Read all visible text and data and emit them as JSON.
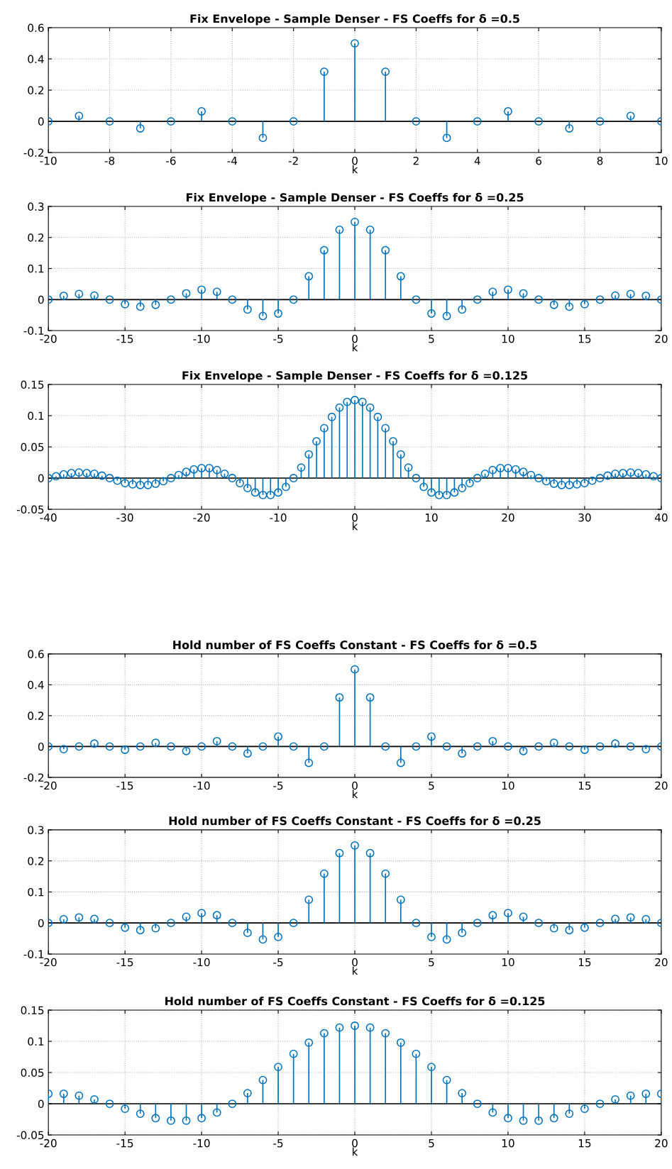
{
  "chart_data": [
    {
      "type": "lollipop",
      "title": "Fix Envelope - Sample Denser - FS Coeffs for δ =0.5",
      "xlabel": "k",
      "xlim": [
        -10,
        10
      ],
      "xticks": [
        -10,
        -8,
        -6,
        -4,
        -2,
        0,
        2,
        4,
        6,
        8,
        10
      ],
      "ylim": [
        -0.2,
        0.6
      ],
      "yticks": [
        -0.2,
        0,
        0.2,
        0.4,
        0.6
      ],
      "grid": true,
      "marker": "circle",
      "ref_lines": [
        {
          "axis": "y",
          "value": 0,
          "color": "#000000"
        }
      ],
      "series": [
        {
          "color": "#0072bd",
          "x": [
            -10,
            -9,
            -8,
            -7,
            -6,
            -5,
            -4,
            -3,
            -2,
            -1,
            0,
            1,
            2,
            3,
            4,
            5,
            6,
            7,
            8,
            9,
            10
          ],
          "values": [
            0,
            0.035,
            0,
            -0.045,
            0,
            0.064,
            0,
            -0.106,
            0,
            0.318,
            0.5,
            0.318,
            0,
            -0.106,
            0,
            0.064,
            0,
            -0.045,
            0,
            0.035,
            0
          ]
        }
      ]
    },
    {
      "type": "lollipop",
      "title": "Fix Envelope - Sample Denser - FS Coeffs for δ =0.25",
      "xlabel": "k",
      "xlim": [
        -20,
        20
      ],
      "xticks": [
        -20,
        -15,
        -10,
        -5,
        0,
        5,
        10,
        15,
        20
      ],
      "ylim": [
        -0.1,
        0.3
      ],
      "yticks": [
        -0.1,
        0,
        0.1,
        0.2,
        0.3
      ],
      "grid": true,
      "marker": "circle",
      "ref_lines": [
        {
          "axis": "y",
          "value": 0,
          "color": "#000000"
        }
      ],
      "series": [
        {
          "color": "#0072bd",
          "x": [
            -20,
            -19,
            -18,
            -17,
            -16,
            -15,
            -14,
            -13,
            -12,
            -11,
            -10,
            -9,
            -8,
            -7,
            -6,
            -5,
            -4,
            -3,
            -2,
            -1,
            0,
            1,
            2,
            3,
            4,
            5,
            6,
            7,
            8,
            9,
            10,
            11,
            12,
            13,
            14,
            15,
            16,
            17,
            18,
            19,
            20
          ],
          "values": [
            0,
            0.012,
            0.018,
            0.013,
            0,
            -0.015,
            -0.023,
            -0.017,
            0,
            0.02,
            0.032,
            0.025,
            0,
            -0.032,
            -0.053,
            -0.045,
            0,
            0.075,
            0.159,
            0.225,
            0.25,
            0.225,
            0.159,
            0.075,
            0,
            -0.045,
            -0.053,
            -0.032,
            0,
            0.025,
            0.032,
            0.02,
            0,
            -0.017,
            -0.023,
            -0.015,
            0,
            0.013,
            0.018,
            0.012,
            0
          ]
        }
      ]
    },
    {
      "type": "lollipop",
      "title": "Fix Envelope - Sample Denser - FS Coeffs for δ =0.125",
      "xlabel": "k",
      "xlim": [
        -40,
        40
      ],
      "xticks": [
        -40,
        -30,
        -20,
        -10,
        0,
        10,
        20,
        30,
        40
      ],
      "ylim": [
        -0.05,
        0.15
      ],
      "yticks": [
        -0.05,
        0,
        0.05,
        0.1,
        0.15
      ],
      "grid": true,
      "marker": "circle",
      "ref_lines": [
        {
          "axis": "y",
          "value": 0,
          "color": "#000000"
        }
      ],
      "series": [
        {
          "color": "#0072bd",
          "x": [
            -40,
            -39,
            -38,
            -37,
            -36,
            -35,
            -34,
            -33,
            -32,
            -31,
            -30,
            -29,
            -28,
            -27,
            -26,
            -25,
            -24,
            -23,
            -22,
            -21,
            -20,
            -19,
            -18,
            -17,
            -16,
            -15,
            -14,
            -13,
            -12,
            -11,
            -10,
            -9,
            -8,
            -7,
            -6,
            -5,
            -4,
            -3,
            -2,
            -1,
            0,
            1,
            2,
            3,
            4,
            5,
            6,
            7,
            8,
            9,
            10,
            11,
            12,
            13,
            14,
            15,
            16,
            17,
            18,
            19,
            20,
            21,
            22,
            23,
            24,
            25,
            26,
            27,
            28,
            29,
            30,
            31,
            32,
            33,
            34,
            35,
            36,
            37,
            38,
            39,
            40
          ],
          "values": [
            0,
            0.003,
            0.006,
            0.008,
            0.009,
            0.008,
            0.007,
            0.004,
            0,
            -0.004,
            -0.008,
            -0.01,
            -0.011,
            -0.011,
            -0.009,
            -0.005,
            0,
            0.005,
            0.01,
            0.014,
            0.016,
            0.016,
            0.013,
            0.007,
            0,
            -0.008,
            -0.016,
            -0.023,
            -0.027,
            -0.027,
            -0.023,
            -0.014,
            0,
            0.017,
            0.038,
            0.059,
            0.08,
            0.098,
            0.113,
            0.122,
            0.125,
            0.122,
            0.113,
            0.098,
            0.08,
            0.059,
            0.038,
            0.017,
            0,
            -0.014,
            -0.023,
            -0.027,
            -0.027,
            -0.023,
            -0.016,
            -0.008,
            0,
            0.007,
            0.013,
            0.016,
            0.016,
            0.014,
            0.01,
            0.005,
            0,
            -0.005,
            -0.009,
            -0.011,
            -0.011,
            -0.01,
            -0.008,
            -0.004,
            0,
            0.004,
            0.007,
            0.008,
            0.009,
            0.008,
            0.006,
            0.003,
            0
          ]
        }
      ]
    },
    {
      "type": "lollipop",
      "title": "Hold number of FS Coeffs Constant - FS Coeffs for δ =0.5",
      "xlabel": "k",
      "xlim": [
        -20,
        20
      ],
      "xticks": [
        -20,
        -15,
        -10,
        -5,
        0,
        5,
        10,
        15,
        20
      ],
      "ylim": [
        -0.2,
        0.6
      ],
      "yticks": [
        -0.2,
        0,
        0.2,
        0.4,
        0.6
      ],
      "grid": true,
      "marker": "circle",
      "ref_lines": [
        {
          "axis": "y",
          "value": 0,
          "color": "#000000"
        }
      ],
      "series": [
        {
          "color": "#0072bd",
          "x": [
            -20,
            -19,
            -18,
            -17,
            -16,
            -15,
            -14,
            -13,
            -12,
            -11,
            -10,
            -9,
            -8,
            -7,
            -6,
            -5,
            -4,
            -3,
            -2,
            -1,
            0,
            1,
            2,
            3,
            4,
            5,
            6,
            7,
            8,
            9,
            10,
            11,
            12,
            13,
            14,
            15,
            16,
            17,
            18,
            19,
            20
          ],
          "values": [
            0,
            -0.017,
            0,
            0.019,
            0,
            -0.021,
            0,
            0.024,
            0,
            -0.029,
            0,
            0.035,
            0,
            -0.045,
            0,
            0.064,
            0,
            -0.106,
            0,
            0.318,
            0.5,
            0.318,
            0,
            -0.106,
            0,
            0.064,
            0,
            -0.045,
            0,
            0.035,
            0,
            -0.029,
            0,
            0.024,
            0,
            -0.021,
            0,
            0.019,
            0,
            -0.017,
            0
          ]
        }
      ]
    },
    {
      "type": "lollipop",
      "title": "Hold number of FS Coeffs Constant - FS Coeffs for δ =0.25",
      "xlabel": "k",
      "xlim": [
        -20,
        20
      ],
      "xticks": [
        -20,
        -15,
        -10,
        -5,
        0,
        5,
        10,
        15,
        20
      ],
      "ylim": [
        -0.1,
        0.3
      ],
      "yticks": [
        -0.1,
        0,
        0.1,
        0.2,
        0.3
      ],
      "grid": true,
      "marker": "circle",
      "ref_lines": [
        {
          "axis": "y",
          "value": 0,
          "color": "#000000"
        }
      ],
      "series": [
        {
          "color": "#0072bd",
          "x": [
            -20,
            -19,
            -18,
            -17,
            -16,
            -15,
            -14,
            -13,
            -12,
            -11,
            -10,
            -9,
            -8,
            -7,
            -6,
            -5,
            -4,
            -3,
            -2,
            -1,
            0,
            1,
            2,
            3,
            4,
            5,
            6,
            7,
            8,
            9,
            10,
            11,
            12,
            13,
            14,
            15,
            16,
            17,
            18,
            19,
            20
          ],
          "values": [
            0,
            0.012,
            0.018,
            0.013,
            0,
            -0.015,
            -0.023,
            -0.017,
            0,
            0.02,
            0.032,
            0.025,
            0,
            -0.032,
            -0.053,
            -0.045,
            0,
            0.075,
            0.159,
            0.225,
            0.25,
            0.225,
            0.159,
            0.075,
            0,
            -0.045,
            -0.053,
            -0.032,
            0,
            0.025,
            0.032,
            0.02,
            0,
            -0.017,
            -0.023,
            -0.015,
            0,
            0.013,
            0.018,
            0.012,
            0
          ]
        }
      ]
    },
    {
      "type": "lollipop",
      "title": "Hold number of FS Coeffs Constant - FS Coeffs for δ =0.125",
      "xlabel": "k",
      "xlim": [
        -20,
        20
      ],
      "xticks": [
        -20,
        -15,
        -10,
        -5,
        0,
        5,
        10,
        15,
        20
      ],
      "ylim": [
        -0.05,
        0.15
      ],
      "yticks": [
        -0.05,
        0,
        0.05,
        0.1,
        0.15
      ],
      "grid": true,
      "marker": "circle",
      "ref_lines": [
        {
          "axis": "y",
          "value": 0,
          "color": "#000000"
        }
      ],
      "series": [
        {
          "color": "#0072bd",
          "x": [
            -20,
            -19,
            -18,
            -17,
            -16,
            -15,
            -14,
            -13,
            -12,
            -11,
            -10,
            -9,
            -8,
            -7,
            -6,
            -5,
            -4,
            -3,
            -2,
            -1,
            0,
            1,
            2,
            3,
            4,
            5,
            6,
            7,
            8,
            9,
            10,
            11,
            12,
            13,
            14,
            15,
            16,
            17,
            18,
            19,
            20
          ],
          "values": [
            0.016,
            0.016,
            0.013,
            0.007,
            0,
            -0.008,
            -0.016,
            -0.023,
            -0.027,
            -0.027,
            -0.023,
            -0.014,
            0,
            0.017,
            0.038,
            0.059,
            0.08,
            0.098,
            0.113,
            0.122,
            0.125,
            0.122,
            0.113,
            0.098,
            0.08,
            0.059,
            0.038,
            0.017,
            0,
            -0.014,
            -0.023,
            -0.027,
            -0.027,
            -0.023,
            -0.016,
            -0.008,
            0,
            0.007,
            0.013,
            0.016,
            0.016
          ]
        }
      ]
    }
  ]
}
